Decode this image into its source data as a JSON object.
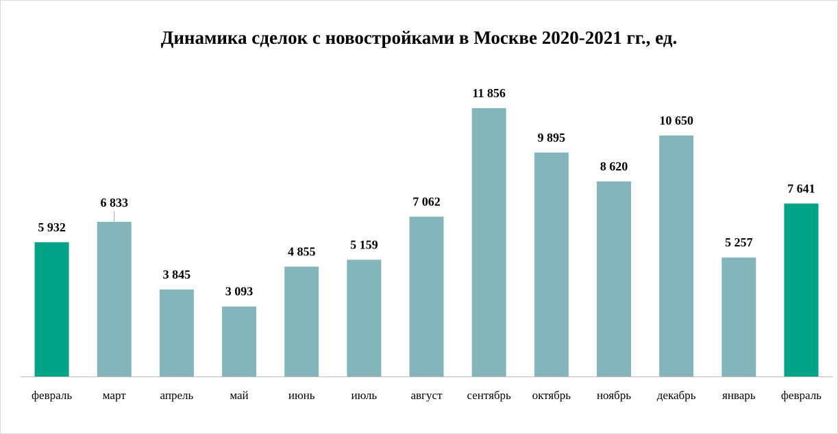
{
  "chart_data": {
    "type": "bar",
    "title": "Динамика сделок с новостройками в Москве 2020-2021 гг., ед.",
    "xlabel": "",
    "ylabel": "",
    "ylim": [
      0,
      11856
    ],
    "grid": false,
    "categories": [
      "февраль",
      "март",
      "апрель",
      "май",
      "июнь",
      "июль",
      "август",
      "сентябрь",
      "октябрь",
      "ноябрь",
      "декабрь",
      "январь",
      "февраль"
    ],
    "values": [
      5932,
      6833,
      3845,
      3093,
      4855,
      5159,
      7062,
      11856,
      9895,
      8620,
      10650,
      5257,
      7641
    ],
    "labels": [
      "5 932",
      "6 833",
      "3 845",
      "3 093",
      "4 855",
      "5 159",
      "7 062",
      "11 856",
      "9 895",
      "8 620",
      "10 650",
      "5 257",
      "7 641"
    ],
    "highlighted": [
      0,
      12
    ],
    "colors": {
      "default": "#84B5BA",
      "highlight": "#00A386",
      "axis": "#bfbfbf",
      "leader": "#a6a6a6"
    }
  }
}
